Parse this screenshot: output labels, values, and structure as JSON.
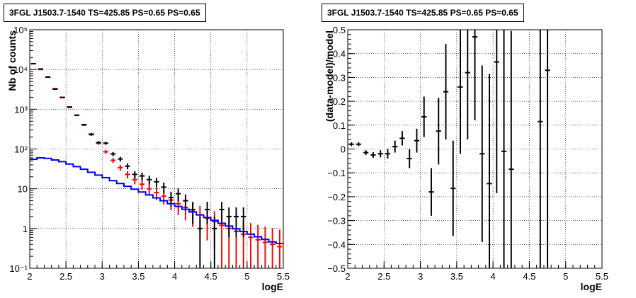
{
  "chart_data": [
    {
      "type": "scatter",
      "title": "3FGL J1503.7-1540 TS=425.85 PS=0.65 PS=0.65",
      "xlabel": "logE",
      "ylabel": "Nb of counts",
      "xlim": [
        2,
        5.5
      ],
      "ylim": [
        0.1,
        100000
      ],
      "yscale": "log",
      "grid": true,
      "x_ticks": [
        2,
        2.5,
        3,
        3.5,
        4,
        4.5,
        5,
        5.5
      ],
      "x_tick_labels": [
        "2",
        "2.5",
        "3",
        "3.5",
        "4",
        "4.5",
        "5",
        "5.5"
      ],
      "y_ticks": [
        0.1,
        1,
        10,
        100,
        1000,
        10000,
        100000
      ],
      "y_tick_labels": [
        "10⁻¹",
        "1",
        "10",
        "10²",
        "10³",
        "10⁴",
        "10⁵"
      ],
      "series": [
        {
          "color": "#ff0000",
          "style": "error-bars",
          "x": [
            2.05,
            2.15,
            2.25,
            2.35,
            2.45,
            2.55,
            2.65,
            2.75,
            2.85,
            2.95,
            3.05,
            3.15,
            3.25,
            3.35,
            3.45,
            3.55,
            3.65,
            3.75,
            3.85,
            3.95,
            4.05,
            4.15,
            4.25,
            4.35,
            4.45,
            4.55,
            4.65,
            4.75,
            4.85,
            4.95,
            5.05,
            5.15,
            5.25,
            5.35,
            5.45
          ],
          "y": [
            14000,
            10000,
            6500,
            3300,
            2000,
            1150,
            700,
            400,
            240,
            140,
            85,
            52,
            34,
            23,
            17,
            13,
            10,
            8,
            6.5,
            5.2,
            4.2,
            3.4,
            2.7,
            2.2,
            1.8,
            1.5,
            1.2,
            1.0,
            0.85,
            0.72,
            0.6,
            0.52,
            0.45,
            0.4,
            0.35
          ],
          "y_err": [
            120,
            100,
            80,
            57,
            45,
            34,
            26,
            20,
            15,
            12,
            9.2,
            7.2,
            5.8,
            4.8,
            4.1,
            3.6,
            3.2,
            2.8,
            2.5,
            2.3,
            2.0,
            1.8,
            1.6,
            1.5,
            1.3,
            1.2,
            1.1,
            1.0,
            0.92,
            0.85,
            0.77,
            0.72,
            0.67,
            0.63,
            0.59
          ]
        },
        {
          "color": "#000000",
          "style": "error-bars",
          "x": [
            2.05,
            2.15,
            2.25,
            2.35,
            2.45,
            2.55,
            2.65,
            2.75,
            2.85,
            2.95,
            3.05,
            3.15,
            3.25,
            3.35,
            3.45,
            3.55,
            3.65,
            3.75,
            3.85,
            3.95,
            4.05,
            4.15,
            4.25,
            4.35,
            4.45,
            4.55,
            4.65,
            4.75,
            4.85,
            4.95
          ],
          "y": [
            14000,
            10300,
            6400,
            3200,
            1960,
            1120,
            710,
            410,
            230,
            145,
            140,
            75,
            56,
            37,
            23,
            21,
            17,
            15,
            11,
            6,
            7.5,
            5,
            3,
            1,
            3,
            1,
            3,
            2,
            2,
            2
          ],
          "y_err": [
            120,
            101,
            80,
            57,
            44,
            33,
            27,
            20,
            15,
            12,
            12,
            8.7,
            7.5,
            6.1,
            4.8,
            4.6,
            4.1,
            3.9,
            3.3,
            2.4,
            2.7,
            2.2,
            1.7,
            1,
            1.7,
            1,
            1.7,
            1.4,
            1.4,
            1.4
          ]
        },
        {
          "color": "#0000ff",
          "style": "step",
          "x": [
            2.05,
            2.15,
            2.25,
            2.35,
            2.45,
            2.55,
            2.65,
            2.75,
            2.85,
            2.95,
            3.05,
            3.15,
            3.25,
            3.35,
            3.45,
            3.55,
            3.65,
            3.75,
            3.85,
            3.95,
            4.05,
            4.15,
            4.25,
            4.35,
            4.45,
            4.55,
            4.65,
            4.75,
            4.85,
            4.95,
            5.05,
            5.15,
            5.25,
            5.35,
            5.45
          ],
          "y": [
            55,
            60,
            58,
            53,
            48,
            42,
            36,
            31,
            26,
            22,
            19,
            16,
            13.5,
            11.5,
            9.8,
            8.3,
            7.0,
            5.9,
            5.0,
            4.2,
            3.6,
            3.05,
            2.6,
            2.2,
            1.9,
            1.6,
            1.35,
            1.15,
            0.98,
            0.84,
            0.72,
            0.62,
            0.53,
            0.46,
            0.42
          ]
        }
      ]
    },
    {
      "type": "scatter",
      "title": "3FGL J1503.7-1540 TS=425.85 PS=0.65 PS=0.65",
      "xlabel": "logE",
      "ylabel": "(data-model)/model",
      "xlim": [
        2,
        5.5
      ],
      "ylim": [
        -0.5,
        0.5
      ],
      "grid": true,
      "x_ticks": [
        2,
        2.5,
        3,
        3.5,
        4,
        4.5,
        5,
        5.5
      ],
      "x_tick_labels": [
        "2",
        "2.5",
        "3",
        "3.5",
        "4",
        "4.5",
        "5",
        "5.5"
      ],
      "y_ticks": [
        -0.5,
        -0.4,
        -0.3,
        -0.2,
        -0.1,
        0,
        0.1,
        0.2,
        0.3,
        0.4,
        0.5
      ],
      "y_tick_labels": [
        "−0.5",
        "−0.4",
        "−0.3",
        "−0.2",
        "−0.1",
        "0",
        "0.1",
        "0.2",
        "0.3",
        "0.4",
        "0.5"
      ],
      "series": [
        {
          "color": "#000000",
          "style": "error-bars",
          "x": [
            2.05,
            2.15,
            2.25,
            2.35,
            2.45,
            2.55,
            2.65,
            2.75,
            2.85,
            2.95,
            3.05,
            3.15,
            3.25,
            3.35,
            3.45,
            3.55,
            3.65,
            3.75,
            3.85,
            3.95,
            4.05,
            4.15,
            4.25,
            4.65,
            4.75
          ],
          "y": [
            0.02,
            0.02,
            -0.015,
            -0.025,
            -0.02,
            -0.02,
            0.01,
            0.045,
            -0.04,
            0.035,
            0.135,
            -0.18,
            0.075,
            0.24,
            -0.165,
            0.26,
            0.32,
            0.47,
            -0.02,
            -0.145,
            0.365,
            -0.01,
            -0.085,
            0.115,
            0.33
          ],
          "y_err": [
            0.008,
            0.008,
            0.01,
            0.012,
            0.015,
            0.02,
            0.025,
            0.03,
            0.04,
            0.05,
            0.085,
            0.1,
            0.14,
            0.2,
            0.2,
            0.28,
            0.28,
            0.35,
            0.37,
            0.46,
            0.55,
            0.55,
            0.58,
            0.9,
            0.9
          ]
        }
      ]
    }
  ]
}
